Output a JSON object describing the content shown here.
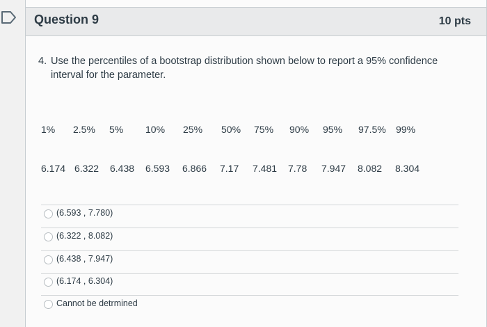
{
  "question": {
    "title": "Question 9",
    "points": "10 pts",
    "number": "4.",
    "prompt": "Use the percentiles of a bootstrap distribution shown below to report a 95% confidence interval for the parameter."
  },
  "percentiles": {
    "labels": [
      "1%",
      "2.5%",
      "5%",
      "10%",
      "25%",
      "50%",
      "75%",
      "90%",
      "95%",
      "97.5%",
      "99%"
    ],
    "values": [
      "6.174",
      "6.322",
      "6.438",
      "6.593",
      "6.866",
      "7.17",
      "7.481",
      "7.78",
      "7.947",
      "8.082",
      "8.304"
    ]
  },
  "options": [
    "(6.593 , 7.780)",
    "(6.322 , 8.082)",
    "(6.438 , 7.947)",
    "(6.174 , 6.304)",
    "Cannot be detrmined"
  ]
}
